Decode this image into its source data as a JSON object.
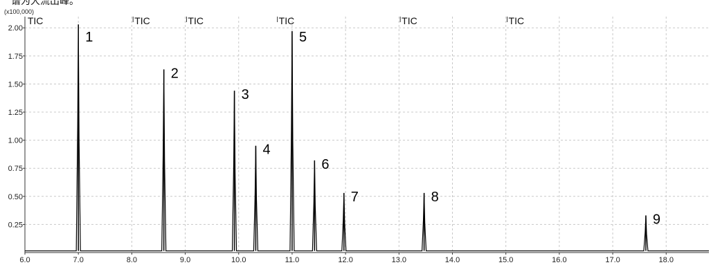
{
  "top_caption": "谱为大流出峰。",
  "chart_data": {
    "type": "line",
    "title": "",
    "xlabel": "",
    "ylabel": "",
    "y_scale_label": "(x100,000)",
    "xlim": [
      6.0,
      18.8
    ],
    "ylim": [
      0,
      2.1
    ],
    "grid": true,
    "x_ticks": [
      6.0,
      7.0,
      8.0,
      9.0,
      10.0,
      11.0,
      12.0,
      13.0,
      14.0,
      15.0,
      16.0,
      17.0,
      18.0
    ],
    "x_tick_labels": [
      "6.0",
      "7.0",
      "8.0",
      "9.0",
      "10.0",
      "11.0",
      "12.0",
      "13.0",
      "14.0",
      "15.0",
      "16.0",
      "17.0",
      "18.0"
    ],
    "y_ticks": [
      0.25,
      0.5,
      0.75,
      1.0,
      1.25,
      1.5,
      1.75,
      2.0
    ],
    "y_tick_labels": [
      "0.25",
      "0.50",
      "0.75",
      "1.00",
      "1.25",
      "1.50",
      "1.75",
      "2.00"
    ],
    "segments": [
      {
        "label": "TIC",
        "x": 6.05
      },
      {
        "label": "TIC",
        "x": 8.05
      },
      {
        "label": "TIC",
        "x": 9.05
      },
      {
        "label": "TIC",
        "x": 10.75
      },
      {
        "label": "TIC",
        "x": 13.05
      },
      {
        "label": "TIC",
        "x": 15.05
      }
    ],
    "peaks": [
      {
        "label": "1",
        "x": 7.0,
        "height": 2.03
      },
      {
        "label": "2",
        "x": 8.6,
        "height": 1.63
      },
      {
        "label": "3",
        "x": 9.92,
        "height": 1.44
      },
      {
        "label": "4",
        "x": 10.32,
        "height": 0.95
      },
      {
        "label": "5",
        "x": 11.0,
        "height": 1.97
      },
      {
        "label": "6",
        "x": 11.42,
        "height": 0.82
      },
      {
        "label": "7",
        "x": 11.97,
        "height": 0.53
      },
      {
        "label": "8",
        "x": 13.47,
        "height": 0.53
      },
      {
        "label": "9",
        "x": 17.62,
        "height": 0.33
      }
    ],
    "colors": {
      "trace": "#000000",
      "grid": "#c8c8c8",
      "axis": "#333333"
    }
  }
}
